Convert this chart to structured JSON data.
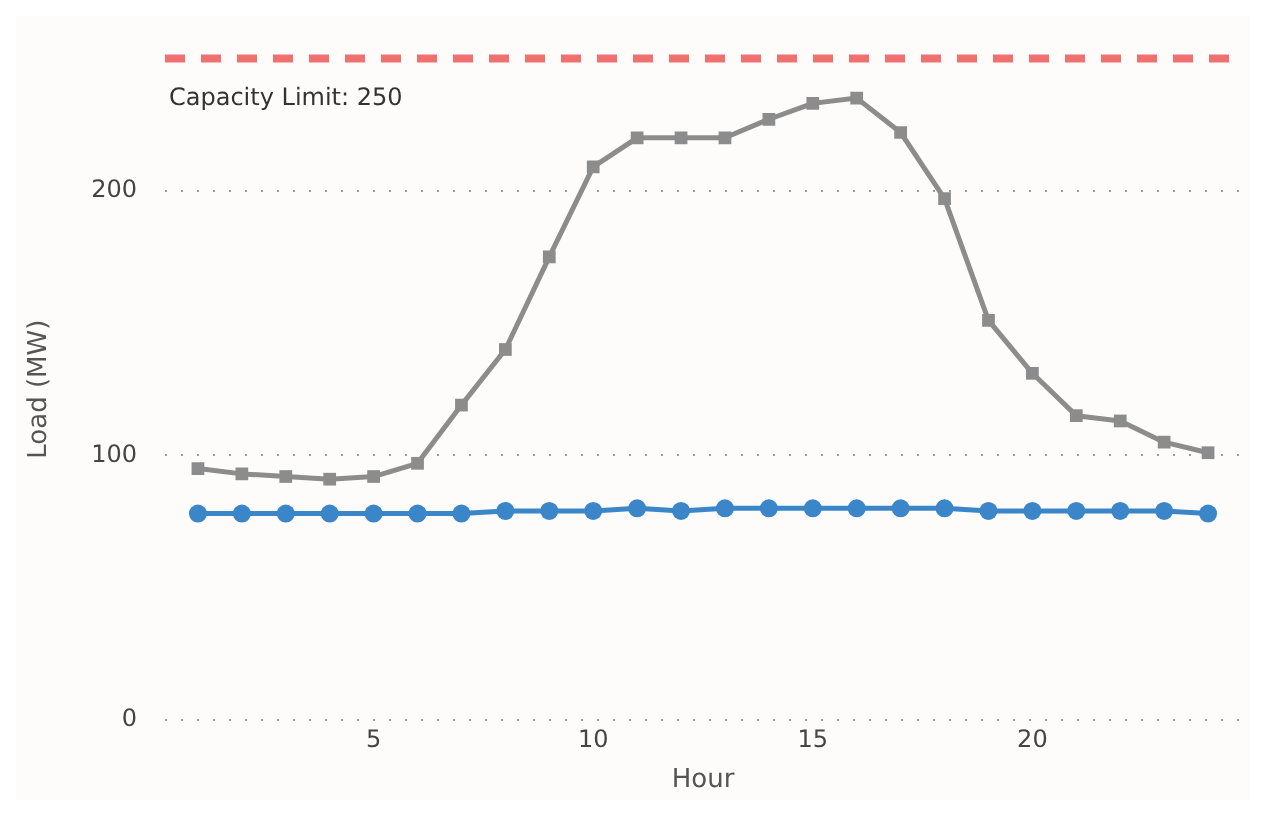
{
  "chart_data": {
    "type": "line",
    "xlabel": "Hour",
    "ylabel": "Load (MW)",
    "x": [
      1,
      2,
      3,
      4,
      5,
      6,
      7,
      8,
      9,
      10,
      11,
      12,
      13,
      14,
      15,
      16,
      17,
      18,
      19,
      20,
      21,
      22,
      23,
      24
    ],
    "series": [
      {
        "color": "#8c8c8c",
        "marker": "square",
        "values": [
          95,
          93,
          92,
          91,
          92,
          97,
          119,
          140,
          175,
          209,
          220,
          220,
          220,
          227,
          233,
          235,
          222,
          197,
          151,
          131,
          115,
          113,
          105,
          101
        ]
      },
      {
        "color": "#3a86c8",
        "marker": "circle",
        "values": [
          78,
          78,
          78,
          78,
          78,
          78,
          78,
          79,
          79,
          79,
          80,
          79,
          80,
          80,
          80,
          80,
          80,
          80,
          79,
          79,
          79,
          79,
          79,
          78
        ]
      }
    ],
    "xlim": [
      0.25,
      24.75
    ],
    "xticks": [
      5,
      10,
      15,
      20
    ],
    "ylim": [
      0,
      250
    ],
    "yticks": [
      0,
      100,
      200
    ],
    "grid": "y",
    "legend": false,
    "line_style": "solid",
    "ref_lines": [
      {
        "axis": "y",
        "value": 250,
        "label": "Capacity Limit: 250",
        "color": "#f07070",
        "line_style": "dashed"
      }
    ]
  }
}
